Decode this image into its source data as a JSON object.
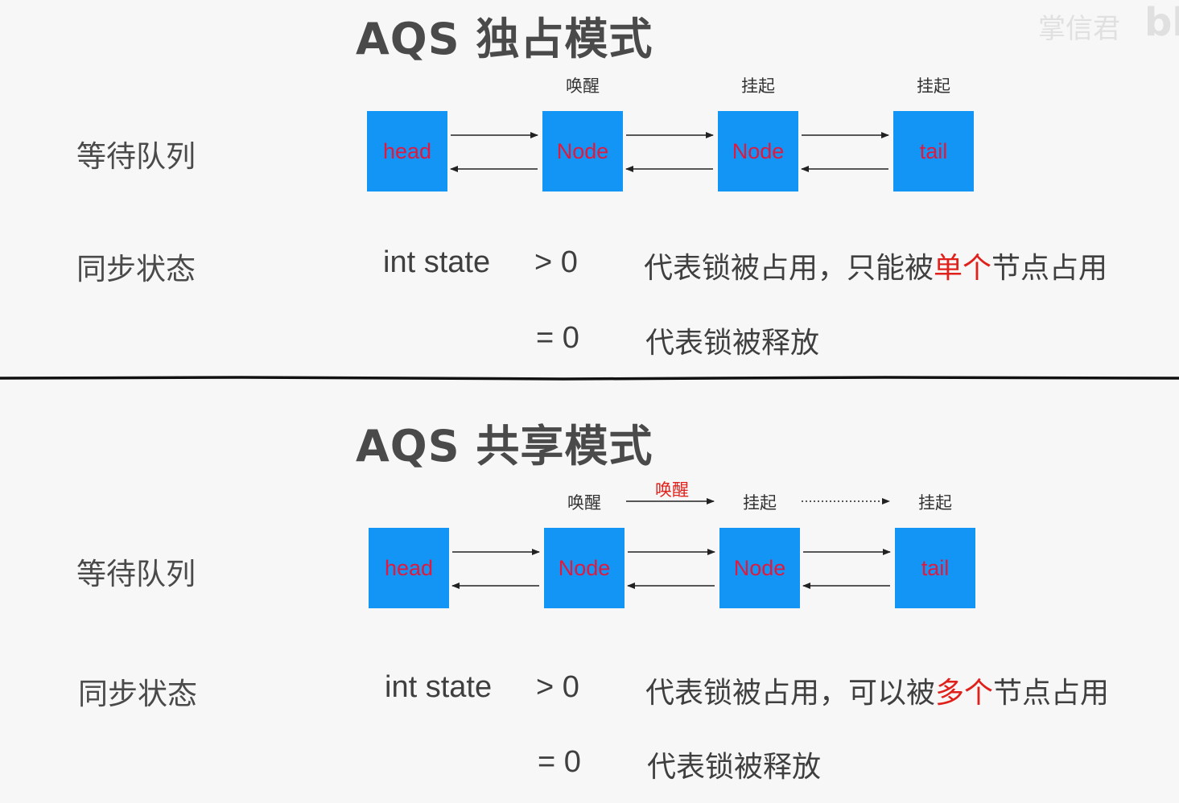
{
  "watermark": {
    "text": "掌信君",
    "logo": "bl"
  },
  "exclusive": {
    "title": "AQS 独占模式",
    "queue_label": "等待队列",
    "state_label": "同步状态",
    "nodes": [
      "head",
      "Node",
      "Node",
      "tail"
    ],
    "node_status": [
      "唤醒",
      "挂起",
      "挂起"
    ],
    "state_var": "int state",
    "gt_zero": "> 0",
    "gt_desc_pre": "代表锁被占用，只能被",
    "gt_desc_hl": "单个",
    "gt_desc_post": "节点占用",
    "eq_zero": "= 0",
    "eq_desc": "代表锁被释放"
  },
  "shared": {
    "title": "AQS 共享模式",
    "queue_label": "等待队列",
    "state_label": "同步状态",
    "nodes": [
      "head",
      "Node",
      "Node",
      "tail"
    ],
    "node_status": [
      "唤醒",
      "挂起",
      "挂起"
    ],
    "propagate_label": "唤醒",
    "state_var": "int state",
    "gt_zero": "> 0",
    "gt_desc_pre": "代表锁被占用，可以被",
    "gt_desc_hl": "多个",
    "gt_desc_post": "节点占用",
    "eq_zero": "= 0",
    "eq_desc": "代表锁被释放"
  },
  "colors": {
    "node_fill": "#1295f5",
    "node_text": "#e2193c",
    "highlight": "#e0201b",
    "divider": "#111111"
  }
}
